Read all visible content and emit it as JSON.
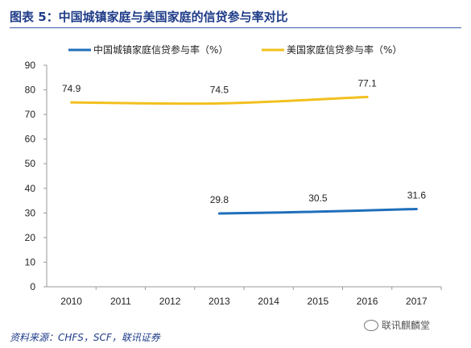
{
  "figure": {
    "title": "图表 5：中国城镇家庭与美国家庭的信贷参与率对比",
    "source": "资料来源：CHFS，SCF，联讯证券",
    "watermark": "联讯麒麟堂"
  },
  "chart_data": {
    "type": "line",
    "x": [
      2010,
      2011,
      2012,
      2013,
      2014,
      2015,
      2016,
      2017
    ],
    "ylim": [
      0,
      90
    ],
    "yticks": [
      0,
      10,
      20,
      30,
      40,
      50,
      60,
      70,
      80,
      90
    ],
    "grid": false,
    "legend_position": "top",
    "series": [
      {
        "name": "中国城镇家庭信贷参与率（%）",
        "color": "#1f6fba",
        "points": [
          {
            "x": 2013,
            "y": 29.8
          },
          {
            "x": 2015,
            "y": 30.5
          },
          {
            "x": 2017,
            "y": 31.6
          }
        ],
        "labels": [
          {
            "x": 2013,
            "y": 29.8,
            "text": "29.8"
          },
          {
            "x": 2015,
            "y": 30.5,
            "text": "30.5"
          },
          {
            "x": 2017,
            "y": 31.6,
            "text": "31.6"
          }
        ]
      },
      {
        "name": "美国家庭信贷参与率（%）",
        "color": "#f2c01e",
        "points": [
          {
            "x": 2010,
            "y": 74.9
          },
          {
            "x": 2013,
            "y": 74.5
          },
          {
            "x": 2016,
            "y": 77.1
          }
        ],
        "labels": [
          {
            "x": 2010,
            "y": 74.9,
            "text": "74.9"
          },
          {
            "x": 2013,
            "y": 74.5,
            "text": "74.5"
          },
          {
            "x": 2016,
            "y": 77.1,
            "text": "77.1"
          }
        ]
      }
    ]
  }
}
